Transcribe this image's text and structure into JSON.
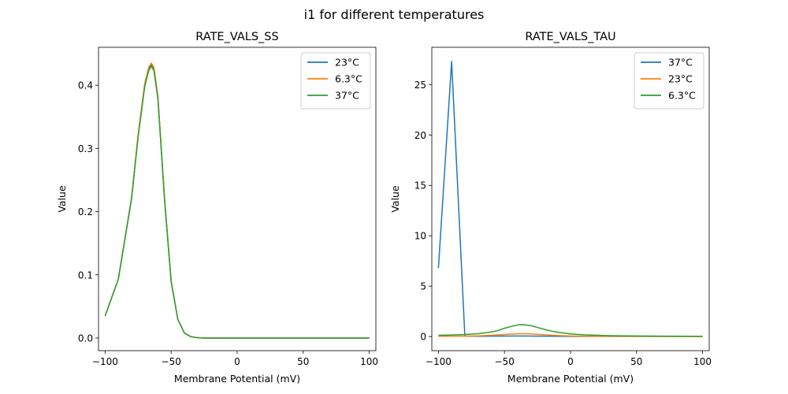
{
  "figure": {
    "suptitle": "i1 for different temperatures"
  },
  "chart_data": [
    {
      "type": "line",
      "title": "RATE_VALS_SS",
      "xlabel": "Membrane Potential (mV)",
      "ylabel": "Value",
      "xlim": [
        -105,
        105
      ],
      "ylim": [
        -0.02,
        0.46
      ],
      "xticks": [
        -100,
        -50,
        0,
        50,
        100
      ],
      "xtick_labels": [
        "−100",
        "−50",
        "0",
        "50",
        "100"
      ],
      "yticks": [
        0.0,
        0.1,
        0.2,
        0.3,
        0.4
      ],
      "ytick_labels": [
        "0.0",
        "0.1",
        "0.2",
        "0.3",
        "0.4"
      ],
      "legend_position": "top-right",
      "series": [
        {
          "name": "23°C",
          "color": "#1f77b4",
          "x": [
            -100,
            -90,
            -80,
            -75,
            -70,
            -67,
            -65,
            -63,
            -60,
            -55,
            -50,
            -45,
            -40,
            -35,
            -30,
            -25,
            -20,
            0,
            50,
            100
          ],
          "y": [
            0.035,
            0.093,
            0.22,
            0.32,
            0.4,
            0.425,
            0.432,
            0.425,
            0.38,
            0.22,
            0.09,
            0.03,
            0.008,
            0.002,
            0.0005,
            0,
            0,
            0,
            0,
            0
          ]
        },
        {
          "name": "6.3°C",
          "color": "#ff7f0e",
          "x": [
            -100,
            -90,
            -80,
            -75,
            -70,
            -67,
            -65,
            -63,
            -60,
            -55,
            -50,
            -45,
            -40,
            -35,
            -30,
            -25,
            -20,
            0,
            50,
            100
          ],
          "y": [
            0.035,
            0.093,
            0.222,
            0.322,
            0.403,
            0.428,
            0.435,
            0.428,
            0.382,
            0.222,
            0.091,
            0.03,
            0.008,
            0.002,
            0.0005,
            0,
            0,
            0,
            0,
            0
          ]
        },
        {
          "name": "37°C",
          "color": "#2ca02c",
          "x": [
            -100,
            -90,
            -80,
            -75,
            -70,
            -67,
            -65,
            -63,
            -60,
            -55,
            -50,
            -45,
            -40,
            -35,
            -30,
            -25,
            -20,
            0,
            50,
            100
          ],
          "y": [
            0.035,
            0.093,
            0.22,
            0.318,
            0.398,
            0.423,
            0.43,
            0.423,
            0.378,
            0.218,
            0.089,
            0.03,
            0.008,
            0.002,
            0.0005,
            0,
            0,
            0,
            0,
            0
          ]
        }
      ]
    },
    {
      "type": "line",
      "title": "RATE_VALS_TAU",
      "xlabel": "Membrane Potential (mV)",
      "ylabel": "Value",
      "xlim": [
        -105,
        105
      ],
      "ylim": [
        -1.4,
        28.7
      ],
      "xticks": [
        -100,
        -50,
        0,
        50,
        100
      ],
      "xtick_labels": [
        "−100",
        "−50",
        "0",
        "50",
        "100"
      ],
      "yticks": [
        0,
        5,
        10,
        15,
        20,
        25
      ],
      "ytick_labels": [
        "0",
        "5",
        "10",
        "15",
        "20",
        "25"
      ],
      "legend_position": "top-right",
      "series": [
        {
          "name": "37°C",
          "color": "#1f77b4",
          "x": [
            -100,
            -90,
            -80,
            -70,
            -60,
            -50,
            -40,
            -30,
            -20,
            -10,
            0,
            20,
            50,
            100
          ],
          "y": [
            6.8,
            27.3,
            0.05,
            0.03,
            0.04,
            0.05,
            0.06,
            0.05,
            0.04,
            0.03,
            0.02,
            0.02,
            0.02,
            0.02
          ]
        },
        {
          "name": "23°C",
          "color": "#ff7f0e",
          "x": [
            -100,
            -80,
            -70,
            -60,
            -50,
            -45,
            -40,
            -37,
            -35,
            -30,
            -25,
            -20,
            -10,
            0,
            10,
            20,
            50,
            100
          ],
          "y": [
            0.03,
            0.05,
            0.07,
            0.12,
            0.2,
            0.24,
            0.27,
            0.28,
            0.28,
            0.26,
            0.22,
            0.17,
            0.1,
            0.06,
            0.04,
            0.03,
            0.02,
            0.01
          ]
        },
        {
          "name": "6.3°C",
          "color": "#2ca02c",
          "x": [
            -100,
            -90,
            -80,
            -70,
            -60,
            -55,
            -50,
            -45,
            -40,
            -37,
            -35,
            -30,
            -25,
            -20,
            -15,
            -10,
            0,
            10,
            20,
            30,
            50,
            75,
            100
          ],
          "y": [
            0.12,
            0.15,
            0.2,
            0.28,
            0.45,
            0.6,
            0.82,
            1.0,
            1.15,
            1.18,
            1.17,
            1.08,
            0.9,
            0.72,
            0.56,
            0.43,
            0.26,
            0.17,
            0.12,
            0.09,
            0.06,
            0.04,
            0.03
          ]
        }
      ]
    }
  ]
}
